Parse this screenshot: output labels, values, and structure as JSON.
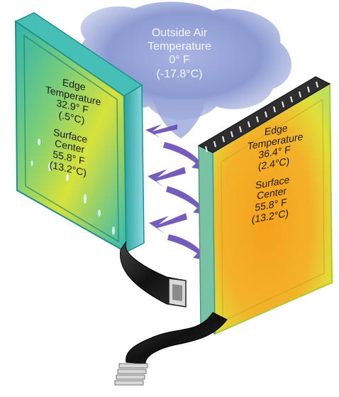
{
  "outside": {
    "line1": "Outside Air",
    "line2": "Temperature",
    "line3": "0° F",
    "line4": "(-17.8°C)"
  },
  "left_pane": {
    "edge_line1": "Edge",
    "edge_line2": "Temperature",
    "edge_line3": "32.9° F",
    "edge_line4": "(.5°C)",
    "surface_line1": "Surface",
    "surface_line2": "Center",
    "surface_line3": "55.8° F",
    "surface_line4": "(13.2°C)"
  },
  "right_pane": {
    "edge_line1": "Edge",
    "edge_line2": "Temperature",
    "edge_line3": "36.4° F",
    "edge_line4": "(2.4°C)",
    "surface_line1": "Surface",
    "surface_line2": "Center",
    "surface_line3": "55.8° F",
    "surface_line4": "(13.2°C)"
  },
  "colors": {
    "cloud": "#8c9bd2",
    "arrow": "#6a4fb8",
    "left_glass_cool": "#33b9b0",
    "left_glass_warm": "#d9e23a",
    "right_glass_warm": "#f29a1c",
    "right_glass_edge": "#c9e23c",
    "spacer": "#1c1c1c"
  }
}
